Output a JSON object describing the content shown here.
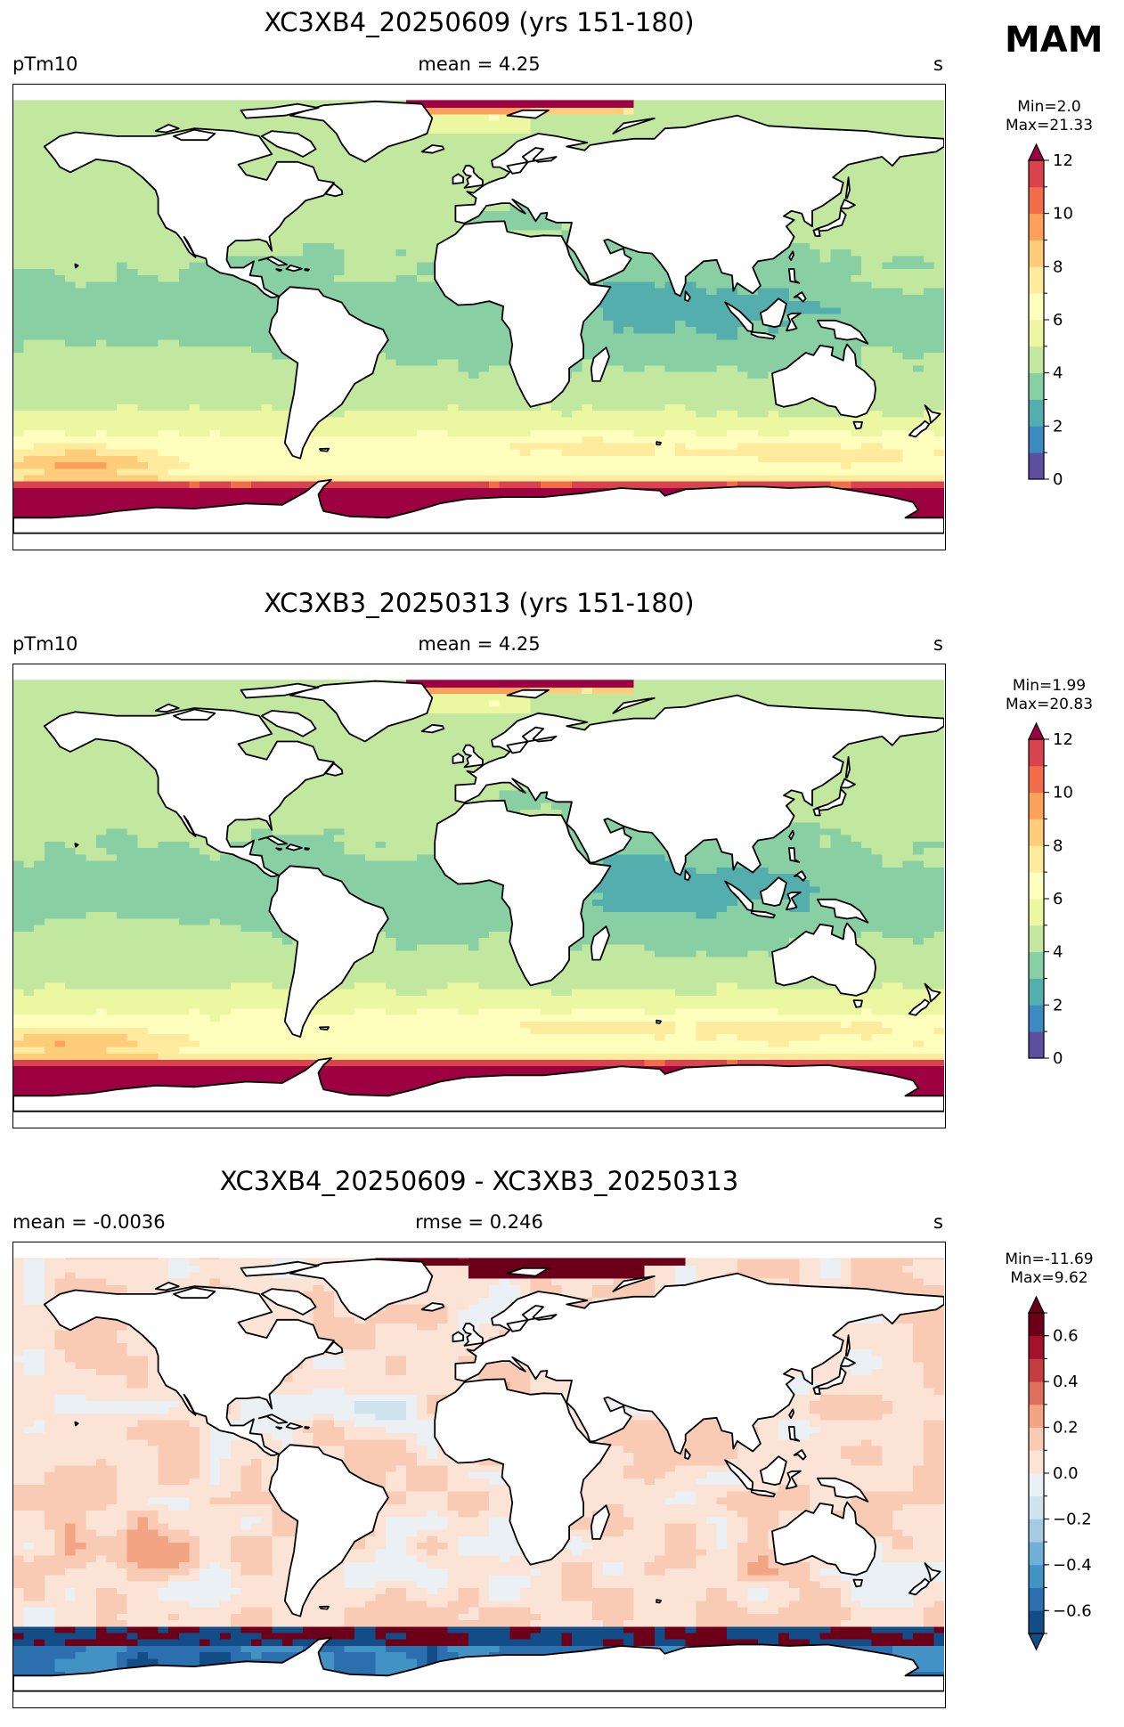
{
  "season": "MAM",
  "panels": [
    {
      "title": "XC3XB4_20250609 (yrs 151-180)",
      "left_label": "pTm10",
      "center_label": "mean = 4.25",
      "right_label": "s",
      "minmax": "Min=2.0\nMax=21.33",
      "colormap": "spectral",
      "colorbar": {
        "min": 0,
        "max": 12,
        "extend": "max",
        "ticks": [
          "0",
          "2",
          "4",
          "6",
          "8",
          "10",
          "12"
        ]
      }
    },
    {
      "title": "XC3XB3_20250313 (yrs 151-180)",
      "left_label": "pTm10",
      "center_label": "mean = 4.25",
      "right_label": "s",
      "minmax": "Min=1.99\nMax=20.83",
      "colormap": "spectral",
      "colorbar": {
        "min": 0,
        "max": 12,
        "extend": "max",
        "ticks": [
          "0",
          "2",
          "4",
          "6",
          "8",
          "10",
          "12"
        ]
      }
    },
    {
      "title": "XC3XB4_20250609 - XC3XB3_20250313",
      "left_label": "mean = -0.0036",
      "center_label": "rmse = 0.246",
      "right_label": "s",
      "minmax": "Min=-11.69\nMax=9.62",
      "colormap": "diverging",
      "colorbar": {
        "min": -0.7,
        "max": 0.7,
        "extend": "both",
        "ticks": [
          "−0.6",
          "−0.4",
          "−0.2",
          "0.0",
          "0.2",
          "0.4",
          "0.6"
        ]
      }
    }
  ],
  "chart_data": [
    {
      "type": "heatmap",
      "title": "XC3XB4_20250609 (yrs 151-180)",
      "variable": "pTm10",
      "units": "s",
      "mean": 4.25,
      "min": 2.0,
      "max": 21.33,
      "colorbar_range": [
        0,
        12
      ],
      "colorbar_levels": [
        0,
        1,
        2,
        3,
        4,
        5,
        6,
        7,
        8,
        9,
        10,
        11,
        12
      ],
      "colors": [
        "#5e4fa2",
        "#3c8ac0",
        "#54aead",
        "#88cfa4",
        "#c2e79f",
        "#ebf7a1",
        "#fefebd",
        "#feeb9e",
        "#fdcd7c",
        "#fba15b",
        "#f26d4a",
        "#d8434e",
        "#9e0142"
      ]
    },
    {
      "type": "heatmap",
      "title": "XC3XB3_20250313 (yrs 151-180)",
      "variable": "pTm10",
      "units": "s",
      "mean": 4.25,
      "min": 1.99,
      "max": 20.83,
      "colorbar_range": [
        0,
        12
      ],
      "colorbar_levels": [
        0,
        1,
        2,
        3,
        4,
        5,
        6,
        7,
        8,
        9,
        10,
        11,
        12
      ],
      "colors": [
        "#5e4fa2",
        "#3c8ac0",
        "#54aead",
        "#88cfa4",
        "#c2e79f",
        "#ebf7a1",
        "#fefebd",
        "#feeb9e",
        "#fdcd7c",
        "#fba15b",
        "#f26d4a",
        "#d8434e",
        "#9e0142"
      ]
    },
    {
      "type": "heatmap",
      "title": "XC3XB4_20250609 - XC3XB3_20250313",
      "units": "s",
      "mean": -0.0036,
      "rmse": 0.246,
      "min": -11.69,
      "max": 9.62,
      "colorbar_range": [
        -0.7,
        0.7
      ],
      "colorbar_levels": [
        -0.7,
        -0.6,
        -0.5,
        -0.4,
        -0.3,
        -0.2,
        -0.1,
        0.0,
        0.1,
        0.2,
        0.3,
        0.4,
        0.5,
        0.6,
        0.7
      ],
      "colors": [
        "#134d87",
        "#2c6fae",
        "#4292c6",
        "#6fb0d6",
        "#a3cce3",
        "#cfe3ef",
        "#eaf0f3",
        "#fbe4d6",
        "#f9cbb5",
        "#f3a482",
        "#dd6f5b",
        "#c43d40",
        "#a1132a",
        "#6c0019"
      ]
    }
  ]
}
